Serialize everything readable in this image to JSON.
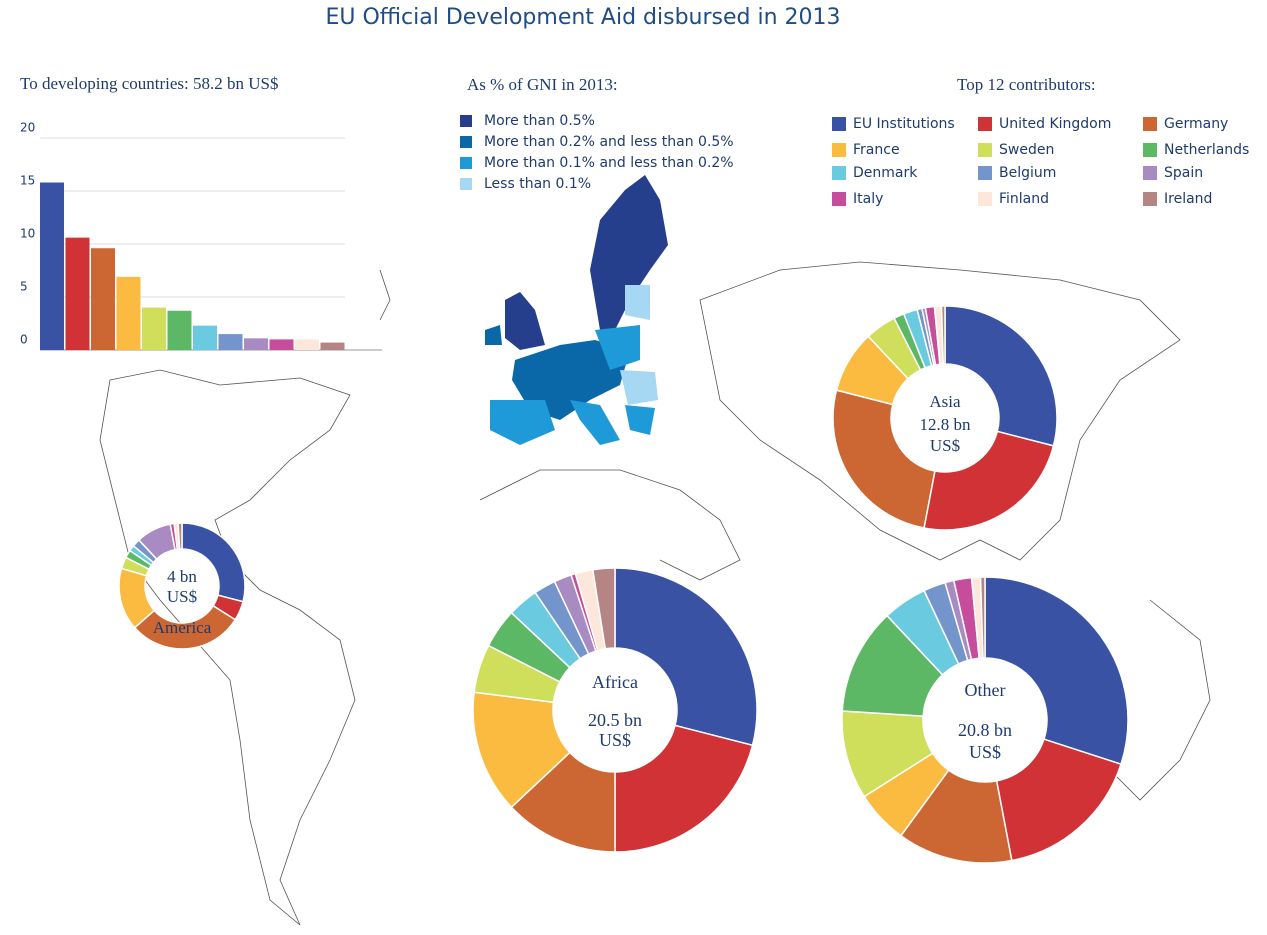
{
  "title": "EU Official Development Aid disbursed in 2013",
  "map": {
    "title": "As % of GNI in 2013:",
    "legend": [
      {
        "label": "More than 0.5%",
        "color": "#263f8c"
      },
      {
        "label": "More than 0.2% and less than 0.5%",
        "color": "#0a67a8"
      },
      {
        "label": "More than 0.1% and less than 0.2%",
        "color": "#1f9ad8"
      },
      {
        "label": "Less than 0.1%",
        "color": "#a6d8f3"
      }
    ]
  },
  "chart_data": [
    {
      "type": "bar",
      "title": "To developing countries: 58.2 bn US$",
      "legend_title": "Top 12 contributors:",
      "categories": [
        "EU Institutions",
        "United Kingdom",
        "Germany",
        "France",
        "Sweden",
        "Netherlands",
        "Denmark",
        "Belgium",
        "Spain",
        "Italy",
        "Finland",
        "Ireland"
      ],
      "colors": [
        "#3a52a4",
        "#d03235",
        "#cc6632",
        "#fbbb40",
        "#cfdf5c",
        "#5cb865",
        "#6acbe0",
        "#7495cc",
        "#a98bc4",
        "#c64c9c",
        "#fde7da",
        "#b58585"
      ],
      "values": [
        15.8,
        10.6,
        9.6,
        6.9,
        4.0,
        3.7,
        2.3,
        1.5,
        1.1,
        1.0,
        1.0,
        0.7
      ],
      "ylim": [
        0,
        20
      ],
      "yticks": [
        0,
        5,
        10,
        15,
        20
      ],
      "grid": true
    },
    {
      "type": "pie",
      "label": [
        "Asia",
        "12.8 bn",
        "US$"
      ],
      "values": [
        29,
        24,
        26,
        9,
        4.5,
        1.5,
        2,
        0.7,
        0.5,
        1.3,
        1,
        0.5
      ]
    },
    {
      "type": "pie",
      "label": [
        "4 bn",
        "US$",
        "America"
      ],
      "values": [
        29,
        5,
        29.5,
        16,
        3,
        2,
        1.5,
        2,
        9,
        1,
        1,
        1
      ]
    },
    {
      "type": "pie",
      "label": [
        "Africa",
        "20.5 bn",
        "US$"
      ],
      "values": [
        29,
        21,
        13,
        14,
        5.5,
        4.5,
        3.5,
        2.5,
        2,
        0.5,
        2,
        2.5
      ]
    },
    {
      "type": "pie",
      "label": [
        "Other",
        "20.8 bn",
        "US$"
      ],
      "values": [
        30,
        17,
        13,
        6,
        10,
        12,
        5,
        2.5,
        1,
        2,
        1,
        0.5
      ]
    }
  ]
}
